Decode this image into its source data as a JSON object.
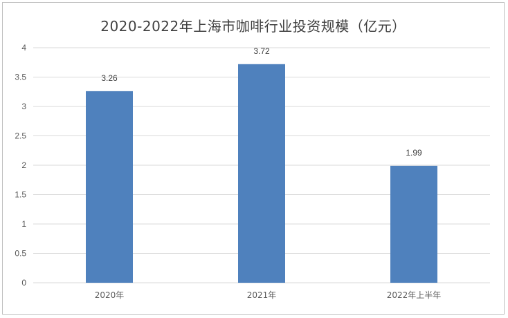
{
  "chart_data": {
    "type": "bar",
    "title": "2020-2022年上海市咖啡行业投资规模（亿元）",
    "categories": [
      "2020年",
      "2021年",
      "2022年上半年"
    ],
    "values": [
      3.26,
      3.72,
      1.99
    ],
    "data_labels": [
      "3.26",
      "3.72",
      "1.99"
    ],
    "y_ticks": [
      "0",
      "0.5",
      "1",
      "1.5",
      "2",
      "2.5",
      "3",
      "3.5",
      "4"
    ],
    "ylim": [
      0,
      4
    ],
    "grid": true,
    "legend": "none",
    "bar_color": "#4f81bd",
    "grid_color": "#d9d9d9"
  }
}
